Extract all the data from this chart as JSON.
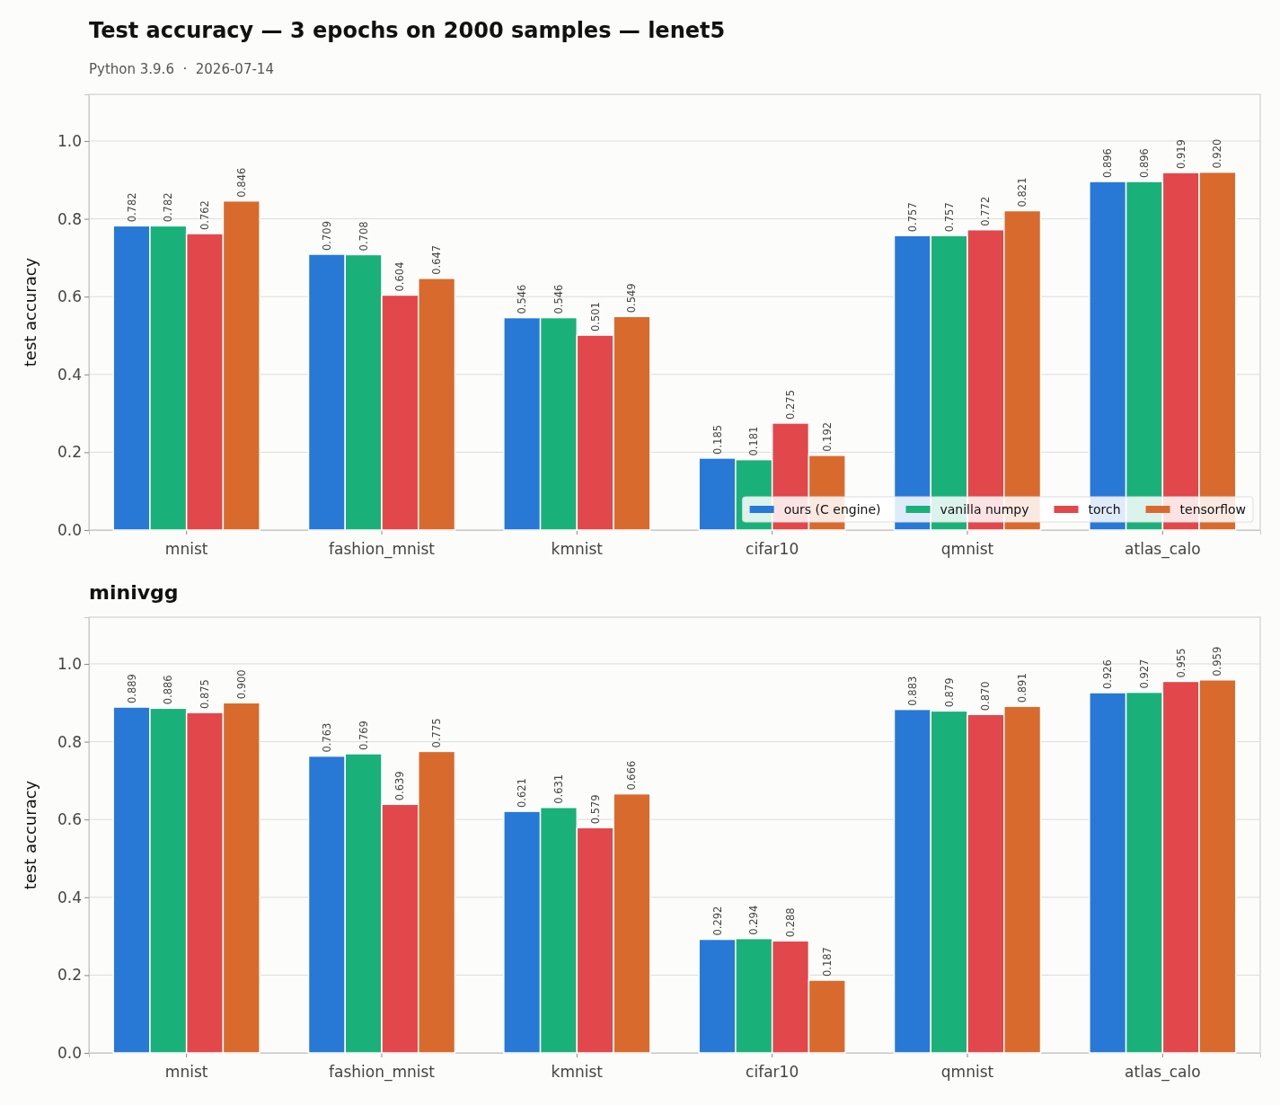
{
  "chart_data": [
    {
      "type": "bar",
      "title": "Test accuracy — 3 epochs on 2000 samples — lenet5",
      "subtitle": "Python 3.9.6  ·  2026-07-14",
      "ylabel": "test accuracy",
      "categories": [
        "mnist",
        "fashion_mnist",
        "kmnist",
        "cifar10",
        "qmnist",
        "atlas_calo"
      ],
      "series": [
        {
          "name": "ours (C engine)",
          "color": "#2878d6",
          "values": [
            0.782,
            0.709,
            0.546,
            0.185,
            0.757,
            0.896
          ],
          "value_labels": [
            "0.782",
            "0.709",
            "0.546",
            "0.185",
            "0.757",
            "0.896"
          ]
        },
        {
          "name": "vanilla numpy",
          "color": "#1ab07a",
          "values": [
            0.782,
            0.708,
            0.546,
            0.181,
            0.757,
            0.896
          ],
          "value_labels": [
            "0.782",
            "0.708",
            "0.546",
            "0.181",
            "0.757",
            "0.896"
          ]
        },
        {
          "name": "torch",
          "color": "#e2474b",
          "values": [
            0.762,
            0.604,
            0.501,
            0.275,
            0.772,
            0.919
          ],
          "value_labels": [
            "0.762",
            "0.604",
            "0.501",
            "0.275",
            "0.772",
            "0.919"
          ]
        },
        {
          "name": "tensorflow",
          "color": "#d96a2e",
          "values": [
            0.846,
            0.647,
            0.549,
            0.192,
            0.821,
            0.92
          ],
          "value_labels": [
            "0.846",
            "0.647",
            "0.549",
            "0.192",
            "0.821",
            "0.920"
          ]
        }
      ],
      "ylim": [
        0,
        1.12
      ],
      "yticks": [
        {
          "value": 0,
          "label": "0.0"
        },
        {
          "value": 0.2,
          "label": "0.2"
        },
        {
          "value": 0.4,
          "label": "0.4"
        },
        {
          "value": 0.6,
          "label": "0.6"
        },
        {
          "value": 0.8,
          "label": "0.8"
        },
        {
          "value": 1,
          "label": "1.0"
        }
      ],
      "grid": "y",
      "legend": "bottom right"
    },
    {
      "type": "bar",
      "title": "minivgg",
      "ylabel": "test accuracy",
      "categories": [
        "mnist",
        "fashion_mnist",
        "kmnist",
        "cifar10",
        "qmnist",
        "atlas_calo"
      ],
      "series": [
        {
          "color": "#2878d6",
          "values": [
            0.889,
            0.763,
            0.621,
            0.292,
            0.883,
            0.926
          ],
          "value_labels": [
            "0.889",
            "0.763",
            "0.621",
            "0.292",
            "0.883",
            "0.926"
          ]
        },
        {
          "color": "#1ab07a",
          "values": [
            0.886,
            0.769,
            0.631,
            0.294,
            0.879,
            0.927
          ],
          "value_labels": [
            "0.886",
            "0.769",
            "0.631",
            "0.294",
            "0.879",
            "0.927"
          ]
        },
        {
          "color": "#e2474b",
          "values": [
            0.875,
            0.639,
            0.579,
            0.288,
            0.87,
            0.955
          ],
          "value_labels": [
            "0.875",
            "0.639",
            "0.579",
            "0.288",
            "0.870",
            "0.955"
          ]
        },
        {
          "color": "#d96a2e",
          "values": [
            0.9,
            0.775,
            0.666,
            0.187,
            0.891,
            0.959
          ],
          "value_labels": [
            "0.900",
            "0.775",
            "0.666",
            "0.187",
            "0.891",
            "0.959"
          ]
        }
      ],
      "ylim": [
        0,
        1.12
      ],
      "yticks": [
        {
          "value": 0,
          "label": "0.0"
        },
        {
          "value": 0.2,
          "label": "0.2"
        },
        {
          "value": 0.4,
          "label": "0.4"
        },
        {
          "value": 0.6,
          "label": "0.6"
        },
        {
          "value": 0.8,
          "label": "0.8"
        },
        {
          "value": 1,
          "label": "1.0"
        }
      ],
      "grid": "y"
    }
  ]
}
